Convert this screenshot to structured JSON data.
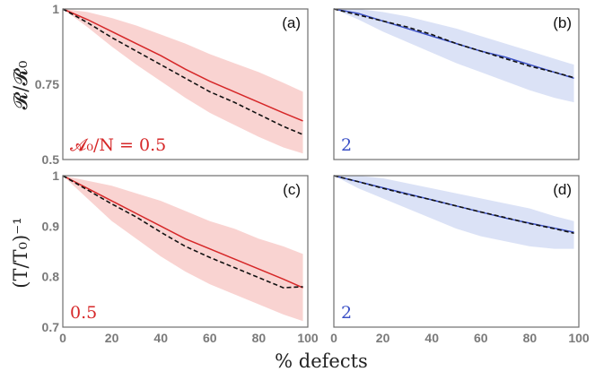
{
  "colors": {
    "red": "#d62728",
    "red_band": "#f7c4c2",
    "blue": "#3b50c6",
    "blue_band": "#cfd8f3",
    "dashed": "#111111",
    "frame": "#6e6e6e"
  },
  "xlabel": "% defects",
  "ylabels": {
    "top": "𝓡/𝓡₀",
    "bottom": "(T/T₀)⁻¹"
  },
  "chart_data": [
    {
      "type": "line",
      "label": "(a)",
      "annotation": "𝓐₀/N = 0.5",
      "color_key": "red",
      "xlim": [
        0,
        100
      ],
      "ylim": [
        0.5,
        1
      ],
      "x_ticks": [
        "0",
        "20",
        "40",
        "60",
        "80",
        "100"
      ],
      "y_ticks": [
        "0.5",
        "0.75",
        "1"
      ],
      "x": [
        0,
        10,
        20,
        30,
        40,
        50,
        60,
        70,
        80,
        90,
        98
      ],
      "series": [
        {
          "style": "solid",
          "values": [
            1.0,
            0.965,
            0.925,
            0.885,
            0.845,
            0.8,
            0.76,
            0.725,
            0.69,
            0.655,
            0.628
          ]
        },
        {
          "style": "dashed",
          "values": [
            1.0,
            0.955,
            0.905,
            0.86,
            0.815,
            0.77,
            0.725,
            0.69,
            0.65,
            0.61,
            0.583
          ]
        }
      ],
      "band": {
        "upper": [
          1.0,
          0.99,
          0.97,
          0.945,
          0.915,
          0.885,
          0.85,
          0.82,
          0.79,
          0.755,
          0.725
        ],
        "lower": [
          1.0,
          0.94,
          0.875,
          0.815,
          0.76,
          0.705,
          0.655,
          0.615,
          0.575,
          0.54,
          0.52
        ]
      }
    },
    {
      "type": "line",
      "label": "(b)",
      "annotation": "2",
      "color_key": "blue",
      "xlim": [
        0,
        100
      ],
      "ylim": [
        0.5,
        1
      ],
      "x_ticks": [
        "0",
        "20",
        "40",
        "60",
        "80",
        "100"
      ],
      "y_ticks": [],
      "x": [
        0,
        10,
        20,
        30,
        40,
        50,
        60,
        70,
        80,
        90,
        98
      ],
      "series": [
        {
          "style": "solid",
          "values": [
            1.0,
            0.985,
            0.96,
            0.935,
            0.91,
            0.885,
            0.86,
            0.84,
            0.815,
            0.79,
            0.77
          ]
        },
        {
          "style": "dashed",
          "values": [
            1.0,
            0.98,
            0.96,
            0.94,
            0.915,
            0.885,
            0.86,
            0.835,
            0.81,
            0.79,
            0.772
          ]
        }
      ],
      "band": {
        "upper": [
          1.0,
          1.0,
          0.99,
          0.975,
          0.955,
          0.935,
          0.91,
          0.885,
          0.86,
          0.835,
          0.815
        ],
        "lower": [
          1.0,
          0.965,
          0.925,
          0.89,
          0.855,
          0.82,
          0.79,
          0.76,
          0.73,
          0.705,
          0.69
        ]
      }
    },
    {
      "type": "line",
      "label": "(c)",
      "annotation": "0.5",
      "color_key": "red",
      "xlim": [
        0,
        100
      ],
      "ylim": [
        0.7,
        1
      ],
      "x_ticks": [
        "0",
        "20",
        "40",
        "60",
        "80",
        "100"
      ],
      "y_ticks": [
        "0.7",
        "0.8",
        "0.9",
        "1"
      ],
      "x": [
        0,
        10,
        20,
        30,
        40,
        50,
        60,
        70,
        80,
        90,
        98
      ],
      "series": [
        {
          "style": "solid",
          "values": [
            1.0,
            0.975,
            0.95,
            0.925,
            0.9,
            0.875,
            0.855,
            0.835,
            0.815,
            0.795,
            0.778
          ]
        },
        {
          "style": "dashed",
          "values": [
            1.0,
            0.972,
            0.944,
            0.918,
            0.888,
            0.86,
            0.838,
            0.818,
            0.798,
            0.778,
            0.78
          ]
        }
      ],
      "band": {
        "upper": [
          1.0,
          0.99,
          0.98,
          0.965,
          0.95,
          0.93,
          0.91,
          0.895,
          0.875,
          0.86,
          0.845
        ],
        "lower": [
          1.0,
          0.955,
          0.91,
          0.875,
          0.84,
          0.81,
          0.785,
          0.765,
          0.745,
          0.725,
          0.712
        ]
      }
    },
    {
      "type": "line",
      "label": "(d)",
      "annotation": "2",
      "color_key": "blue",
      "xlim": [
        0,
        100
      ],
      "ylim": [
        0.7,
        1
      ],
      "x_ticks": [
        "0",
        "20",
        "40",
        "60",
        "80",
        "100"
      ],
      "y_ticks": [],
      "x": [
        0,
        10,
        20,
        30,
        40,
        50,
        60,
        70,
        80,
        90,
        98
      ],
      "series": [
        {
          "style": "solid",
          "values": [
            1.0,
            0.988,
            0.976,
            0.964,
            0.952,
            0.94,
            0.928,
            0.916,
            0.906,
            0.896,
            0.888
          ]
        },
        {
          "style": "dashed",
          "values": [
            1.0,
            0.988,
            0.975,
            0.963,
            0.952,
            0.94,
            0.928,
            0.917,
            0.905,
            0.895,
            0.886
          ]
        }
      ],
      "band": {
        "upper": [
          1.0,
          1.0,
          0.995,
          0.985,
          0.975,
          0.965,
          0.955,
          0.945,
          0.935,
          0.92,
          0.91
        ],
        "lower": [
          1.0,
          0.975,
          0.955,
          0.935,
          0.915,
          0.895,
          0.88,
          0.87,
          0.86,
          0.855,
          0.855
        ]
      }
    }
  ]
}
